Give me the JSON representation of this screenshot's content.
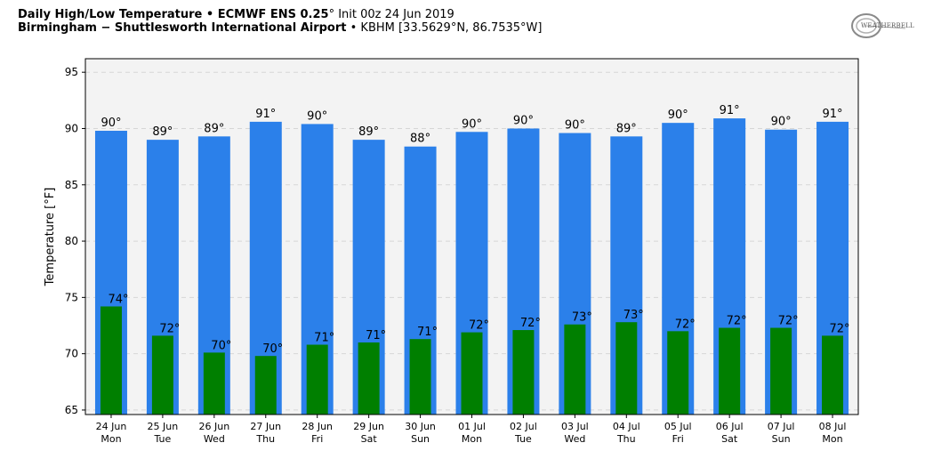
{
  "header": {
    "line1_bold": "Daily High/Low Temperature • ECMWF ENS 0.25",
    "line1_deg": "°",
    "line1_rest": " Init 00z 24 Jun 2019",
    "line2_bold": "Birmingham − Shuttlesworth International Airport",
    "line2_rest": " • KBHM [33.5629°N, 86.7535°W]"
  },
  "logo": {
    "text": "WEATHERBELL",
    "icon": "weatherbell-logo"
  },
  "colors": {
    "high": "#2b80ea",
    "low": "#007f00",
    "plot_bg": "#f3f3f3",
    "grid": "#d6d6d6"
  },
  "chart_data": {
    "type": "bar",
    "ylabel": "Temperature [°F]",
    "ylim": [
      64.6,
      96.2
    ],
    "yticks": [
      65,
      70,
      75,
      80,
      85,
      90,
      95
    ],
    "grid": true,
    "categories": [
      [
        "24 Jun",
        "Mon"
      ],
      [
        "25 Jun",
        "Tue"
      ],
      [
        "26 Jun",
        "Wed"
      ],
      [
        "27 Jun",
        "Thu"
      ],
      [
        "28 Jun",
        "Fri"
      ],
      [
        "29 Jun",
        "Sat"
      ],
      [
        "30 Jun",
        "Sun"
      ],
      [
        "01 Jul",
        "Mon"
      ],
      [
        "02 Jul",
        "Tue"
      ],
      [
        "03 Jul",
        "Wed"
      ],
      [
        "04 Jul",
        "Thu"
      ],
      [
        "05 Jul",
        "Fri"
      ],
      [
        "06 Jul",
        "Sat"
      ],
      [
        "07 Jul",
        "Sun"
      ],
      [
        "08 Jul",
        "Mon"
      ]
    ],
    "series": [
      {
        "values": [
          89.8,
          89.0,
          89.3,
          90.6,
          90.4,
          89.0,
          88.4,
          89.7,
          90.0,
          89.6,
          89.3,
          90.5,
          90.9,
          89.9,
          90.6
        ],
        "labels": [
          "90°",
          "89°",
          "89°",
          "91°",
          "90°",
          "89°",
          "88°",
          "90°",
          "90°",
          "90°",
          "89°",
          "90°",
          "91°",
          "90°",
          "91°"
        ]
      },
      {
        "values": [
          74.2,
          71.6,
          70.1,
          69.8,
          70.8,
          71.0,
          71.3,
          71.9,
          72.1,
          72.6,
          72.8,
          72.0,
          72.3,
          72.3,
          71.6
        ],
        "labels": [
          "74°",
          "72°",
          "70°",
          "70°",
          "71°",
          "71°",
          "71°",
          "72°",
          "72°",
          "73°",
          "73°",
          "72°",
          "72°",
          "72°",
          "72°"
        ]
      }
    ]
  }
}
